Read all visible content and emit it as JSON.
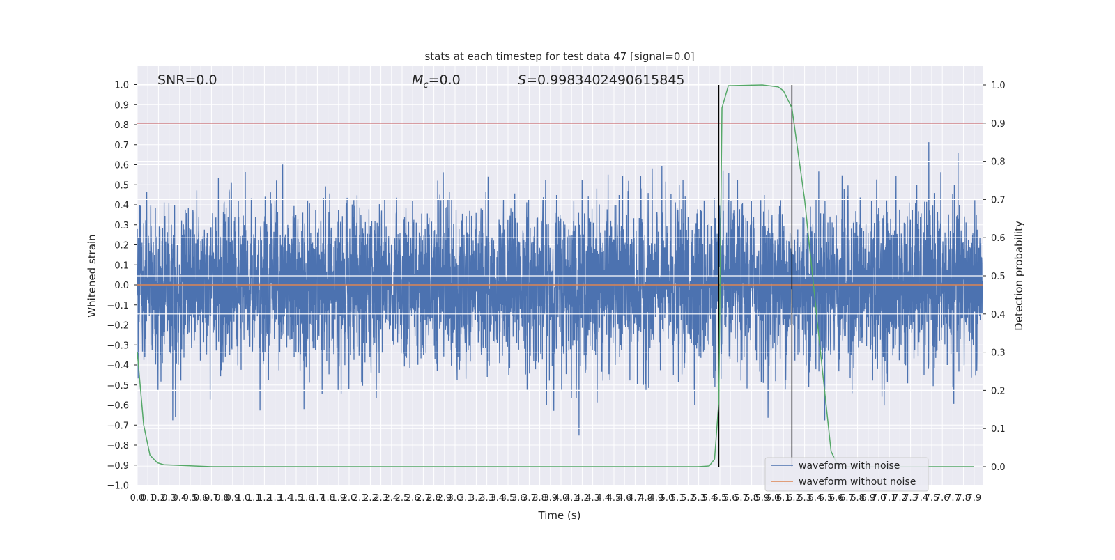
{
  "chart_data": {
    "type": "line",
    "title": "stats at each timestep for test data 47 [signal=0.0]",
    "annotations": {
      "snr": "SNR=0.0",
      "mc_symbol": "M",
      "mc_sub": "c",
      "mc_value": "=0.0",
      "s_symbol": "S",
      "s_value": "=0.9983402490615845"
    },
    "xlabel": "Time (s)",
    "ylabel": "Whitened strain",
    "ylabel_right": "Detection probability",
    "xlim": [
      0,
      7.98
    ],
    "ylim": [
      -1.0,
      1.1
    ],
    "ylim_right": [
      -0.05,
      1.05
    ],
    "grid": true,
    "legend_position": "lower-right",
    "xticks": [
      "0.0",
      "0.1",
      "0.2",
      "0.3",
      "0.4",
      "0.5",
      "0.6",
      "0.7",
      "0.8",
      "0.9",
      "1.0",
      "1.1",
      "1.2",
      "1.3",
      "1.4",
      "1.5",
      "1.6",
      "1.7",
      "1.8",
      "1.9",
      "2.0",
      "2.1",
      "2.2",
      "2.3",
      "2.4",
      "2.5",
      "2.6",
      "2.7",
      "2.8",
      "2.9",
      "3.0",
      "3.1",
      "3.2",
      "3.3",
      "3.4",
      "3.5",
      "3.6",
      "3.7",
      "3.8",
      "3.9",
      "4.0",
      "4.1",
      "4.2",
      "4.3",
      "4.4",
      "4.5",
      "4.6",
      "4.7",
      "4.8",
      "4.9",
      "5.0",
      "5.1",
      "5.2",
      "5.3",
      "5.4",
      "5.5",
      "5.6",
      "5.7",
      "5.8",
      "5.9",
      "6.0",
      "6.1",
      "6.2",
      "6.3",
      "6.4",
      "6.5",
      "6.6",
      "6.7",
      "6.8",
      "6.9",
      "7.0",
      "7.1",
      "7.2",
      "7.3",
      "7.4",
      "7.5",
      "7.6",
      "7.7",
      "7.8",
      "7.9"
    ],
    "yticks_left": [
      "1.0",
      "0.9",
      "0.8",
      "0.7",
      "0.6",
      "0.5",
      "0.4",
      "0.3",
      "0.2",
      "0.1",
      "0.0",
      "−0.1",
      "−0.2",
      "−0.3",
      "−0.4",
      "−0.5",
      "−0.6",
      "−0.7",
      "−0.8",
      "−0.9",
      "−1.0"
    ],
    "yticks_right": [
      "1.0",
      "0.9",
      "0.8",
      "0.7",
      "0.6",
      "0.5",
      "0.4",
      "0.3",
      "0.2",
      "0.1",
      "0.0"
    ],
    "series": [
      {
        "name": "waveform with noise",
        "color": "#4C72B0",
        "axis": "left",
        "range": [
          -0.9,
          1.0
        ]
      },
      {
        "name": "waveform without noise",
        "color": "#DD8452",
        "axis": "left",
        "x": [
          0,
          7.98
        ],
        "y": [
          0.0,
          0.0
        ]
      },
      {
        "axis": "right",
        "color": "#55A868",
        "x": [
          0.0,
          0.06,
          0.12,
          0.19,
          0.25,
          0.7,
          5.3,
          5.4,
          5.45,
          5.49,
          5.52,
          5.58,
          5.9,
          6.05,
          6.1,
          6.18,
          6.3,
          6.45,
          6.55,
          6.62,
          7.9
        ],
        "y": [
          0.3,
          0.11,
          0.03,
          0.01,
          0.005,
          0.0,
          0.0,
          0.002,
          0.02,
          0.17,
          0.94,
          0.998,
          1.0,
          0.995,
          0.985,
          0.94,
          0.7,
          0.3,
          0.04,
          0.0,
          0.0
        ]
      }
    ],
    "threshold": {
      "axis": "right",
      "value": 0.9,
      "color": "#C44E52"
    },
    "vertical_lines": {
      "x": [
        5.49,
        6.18
      ],
      "color": "#000000"
    }
  }
}
